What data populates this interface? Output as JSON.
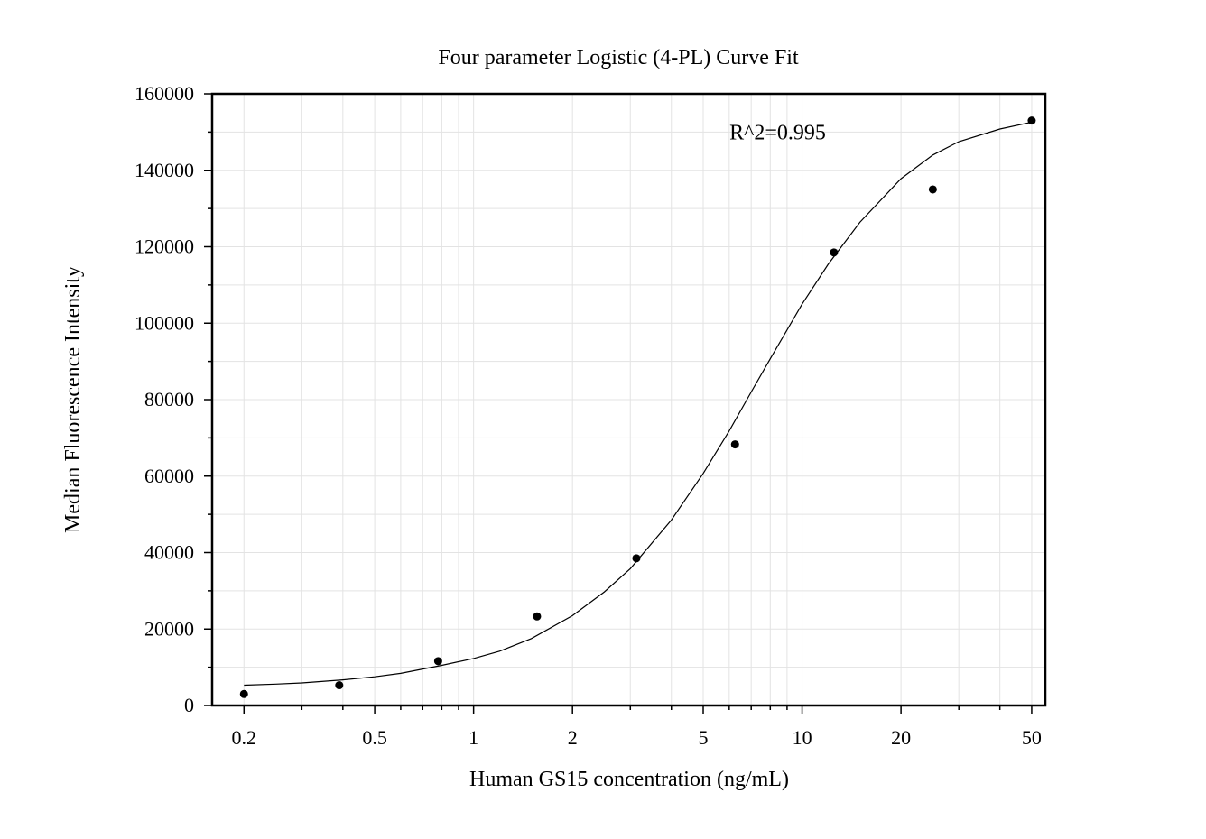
{
  "chart_data": {
    "type": "scatter",
    "title": "Four parameter Logistic (4-PL) Curve Fit",
    "xlabel": "Human GS15 concentration (ng/mL)",
    "ylabel": "Median Fluorescence Intensity",
    "x_scale": "log",
    "xlim": [
      0.16,
      55
    ],
    "ylim": [
      0,
      160000
    ],
    "x_ticks": [
      {
        "value": 0.2,
        "label": "0.2"
      },
      {
        "value": 0.5,
        "label": "0.5"
      },
      {
        "value": 1,
        "label": "1"
      },
      {
        "value": 2,
        "label": "2"
      },
      {
        "value": 5,
        "label": "5"
      },
      {
        "value": 10,
        "label": "10"
      },
      {
        "value": 20,
        "label": "20"
      },
      {
        "value": 50,
        "label": "50"
      }
    ],
    "y_ticks": [
      {
        "value": 0,
        "label": "0"
      },
      {
        "value": 20000,
        "label": "20000"
      },
      {
        "value": 40000,
        "label": "40000"
      },
      {
        "value": 60000,
        "label": "60000"
      },
      {
        "value": 80000,
        "label": "80000"
      },
      {
        "value": 100000,
        "label": "100000"
      },
      {
        "value": 120000,
        "label": "120000"
      },
      {
        "value": 140000,
        "label": "140000"
      },
      {
        "value": 160000,
        "label": "160000"
      }
    ],
    "grid": true,
    "series": [
      {
        "x": [
          0.2,
          0.39,
          0.78,
          1.56,
          3.13,
          6.25,
          12.5,
          25,
          50
        ],
        "y": [
          3000,
          5300,
          11600,
          23300,
          38500,
          68300,
          118500,
          135000,
          153000
        ]
      }
    ],
    "fit_curve": {
      "model": "4-PL",
      "x": [
        0.2,
        0.25,
        0.3,
        0.4,
        0.5,
        0.6,
        0.8,
        1,
        1.2,
        1.5,
        2,
        2.5,
        3,
        4,
        5,
        6,
        7,
        8,
        10,
        12,
        15,
        20,
        25,
        30,
        40,
        50
      ],
      "y": [
        5300,
        5600,
        5900,
        6700,
        7500,
        8400,
        10500,
        12300,
        14200,
        17500,
        23500,
        29700,
        35800,
        48500,
        60700,
        71800,
        82000,
        90700,
        105000,
        115400,
        126400,
        137800,
        144000,
        147500,
        150800,
        152600
      ]
    },
    "annotations": [
      {
        "text": "R^2=0.995",
        "x": 20,
        "y": 150000
      }
    ],
    "colors": {
      "points": "#000000",
      "curve": "#000000",
      "grid": "#e3e3e3",
      "axes": "#000000"
    }
  }
}
